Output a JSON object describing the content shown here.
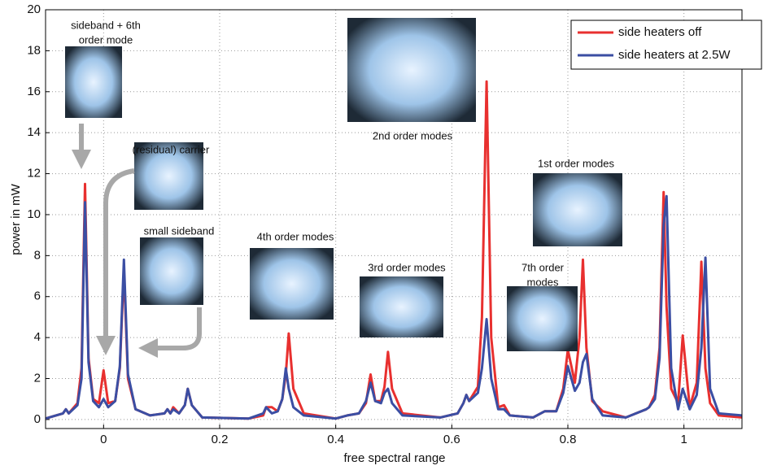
{
  "chart_data": {
    "type": "line",
    "xlabel": "free spectral range",
    "ylabel": "power in mW",
    "xlim": [
      -0.1,
      1.1
    ],
    "ylim": [
      -0.44,
      20
    ],
    "xticks": [
      0,
      0.2,
      0.4,
      0.6,
      0.8,
      1
    ],
    "yticks": [
      0,
      2,
      4,
      6,
      8,
      10,
      12,
      14,
      16,
      18,
      20
    ],
    "grid": true,
    "legend": "upper right",
    "x": [
      -0.1,
      -0.07,
      -0.065,
      -0.06,
      -0.045,
      -0.038,
      -0.032,
      -0.026,
      -0.018,
      -0.008,
      0,
      0.008,
      0.02,
      0.028,
      0.035,
      0.042,
      0.055,
      0.08,
      0.105,
      0.11,
      0.115,
      0.12,
      0.13,
      0.14,
      0.145,
      0.152,
      0.17,
      0.25,
      0.275,
      0.28,
      0.29,
      0.3,
      0.308,
      0.314,
      0.319,
      0.327,
      0.345,
      0.4,
      0.42,
      0.44,
      0.452,
      0.46,
      0.468,
      0.478,
      0.484,
      0.49,
      0.497,
      0.515,
      0.58,
      0.61,
      0.62,
      0.625,
      0.63,
      0.645,
      0.652,
      0.66,
      0.668,
      0.68,
      0.69,
      0.7,
      0.74,
      0.76,
      0.78,
      0.792,
      0.8,
      0.812,
      0.82,
      0.826,
      0.832,
      0.842,
      0.86,
      0.9,
      0.935,
      0.94,
      0.95,
      0.958,
      0.965,
      0.97,
      0.978,
      0.99,
      0.998,
      1.01,
      1.022,
      1.03,
      1.037,
      1.045,
      1.06,
      1.1
    ],
    "series": [
      {
        "name": "side heaters off",
        "color": "#e8302f",
        "values": [
          0.05,
          0.3,
          0.5,
          0.3,
          0.8,
          2.5,
          11.5,
          3.0,
          1.0,
          0.8,
          2.4,
          0.8,
          0.9,
          2.5,
          7.3,
          2.0,
          0.5,
          0.2,
          0.3,
          0.5,
          0.3,
          0.6,
          0.3,
          0.7,
          1.5,
          0.7,
          0.1,
          0.05,
          0.2,
          0.6,
          0.6,
          0.4,
          1.0,
          2.2,
          4.2,
          1.5,
          0.3,
          0.05,
          0.2,
          0.3,
          0.8,
          2.2,
          0.9,
          0.9,
          1.6,
          3.3,
          1.5,
          0.3,
          0.1,
          0.3,
          0.8,
          1.2,
          0.9,
          1.6,
          5.0,
          16.5,
          4.0,
          0.6,
          0.7,
          0.2,
          0.1,
          0.4,
          0.4,
          1.5,
          3.4,
          1.8,
          4.0,
          7.8,
          3.5,
          0.9,
          0.4,
          0.1,
          0.5,
          0.6,
          1.2,
          3.5,
          11.1,
          5.5,
          1.5,
          0.8,
          4.1,
          0.6,
          1.8,
          7.7,
          2.5,
          0.8,
          0.2,
          0.1
        ]
      },
      {
        "name": "side heaters at 2.5W",
        "color": "#3b4ea3",
        "values": [
          0.05,
          0.3,
          0.5,
          0.3,
          0.7,
          2.0,
          10.6,
          2.8,
          0.9,
          0.6,
          1.0,
          0.6,
          0.9,
          2.6,
          7.8,
          2.2,
          0.5,
          0.2,
          0.3,
          0.5,
          0.3,
          0.5,
          0.3,
          0.7,
          1.5,
          0.7,
          0.1,
          0.05,
          0.3,
          0.6,
          0.3,
          0.4,
          1.0,
          2.5,
          1.5,
          0.6,
          0.2,
          0.05,
          0.2,
          0.3,
          0.9,
          1.8,
          0.9,
          0.8,
          1.3,
          1.5,
          0.8,
          0.2,
          0.1,
          0.3,
          0.8,
          1.2,
          0.9,
          1.3,
          2.5,
          4.9,
          2.0,
          0.5,
          0.5,
          0.2,
          0.1,
          0.4,
          0.4,
          1.3,
          2.6,
          1.4,
          1.8,
          2.8,
          3.2,
          1.0,
          0.2,
          0.1,
          0.5,
          0.6,
          1.0,
          3.0,
          9.5,
          10.9,
          2.5,
          0.5,
          1.5,
          0.5,
          1.2,
          3.5,
          7.9,
          1.5,
          0.3,
          0.2
        ]
      }
    ],
    "annotations": [
      {
        "text": [
          "sideband + 6th",
          "order mode"
        ]
      },
      {
        "text": [
          "(residual) carrier"
        ]
      },
      {
        "text": [
          "small sideband"
        ]
      },
      {
        "text": [
          "4th order modes"
        ]
      },
      {
        "text": [
          "2nd order modes"
        ]
      },
      {
        "text": [
          "3rd order modes"
        ]
      },
      {
        "text": [
          "1st order modes"
        ]
      },
      {
        "text": [
          "7th order",
          "modes"
        ]
      }
    ]
  }
}
